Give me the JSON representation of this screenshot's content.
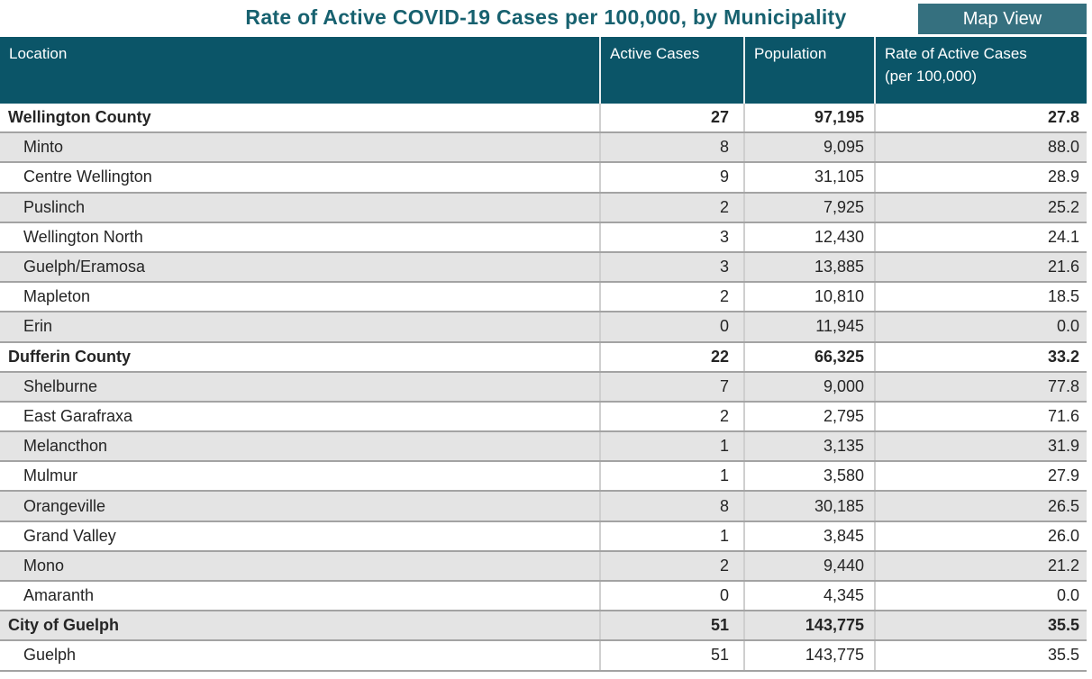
{
  "title": "Rate of Active COVID-19 Cases per 100,000, by Municipality",
  "toolbar": {
    "map_view_label": "Map View"
  },
  "table": {
    "columns": {
      "location": "Location",
      "active_cases": "Active Cases",
      "population": "Population",
      "rate": "Rate of Active Cases\n(per 100,000)"
    },
    "rows": [
      {
        "location": "Wellington County",
        "active_cases": "27",
        "population": "97,195",
        "rate": "27.8",
        "group": true
      },
      {
        "location": "Minto",
        "active_cases": "8",
        "population": "9,095",
        "rate": "88.0",
        "group": false
      },
      {
        "location": "Centre Wellington",
        "active_cases": "9",
        "population": "31,105",
        "rate": "28.9",
        "group": false
      },
      {
        "location": "Puslinch",
        "active_cases": "2",
        "population": "7,925",
        "rate": "25.2",
        "group": false
      },
      {
        "location": "Wellington North",
        "active_cases": "3",
        "population": "12,430",
        "rate": "24.1",
        "group": false
      },
      {
        "location": "Guelph/Eramosa",
        "active_cases": "3",
        "population": "13,885",
        "rate": "21.6",
        "group": false
      },
      {
        "location": "Mapleton",
        "active_cases": "2",
        "population": "10,810",
        "rate": "18.5",
        "group": false
      },
      {
        "location": "Erin",
        "active_cases": "0",
        "population": "11,945",
        "rate": "0.0",
        "group": false
      },
      {
        "location": "Dufferin County",
        "active_cases": "22",
        "population": "66,325",
        "rate": "33.2",
        "group": true
      },
      {
        "location": "Shelburne",
        "active_cases": "7",
        "population": "9,000",
        "rate": "77.8",
        "group": false
      },
      {
        "location": "East Garafraxa",
        "active_cases": "2",
        "population": "2,795",
        "rate": "71.6",
        "group": false
      },
      {
        "location": "Melancthon",
        "active_cases": "1",
        "population": "3,135",
        "rate": "31.9",
        "group": false
      },
      {
        "location": "Mulmur",
        "active_cases": "1",
        "population": "3,580",
        "rate": "27.9",
        "group": false
      },
      {
        "location": "Orangeville",
        "active_cases": "8",
        "population": "30,185",
        "rate": "26.5",
        "group": false
      },
      {
        "location": "Grand Valley",
        "active_cases": "1",
        "population": "3,845",
        "rate": "26.0",
        "group": false
      },
      {
        "location": "Mono",
        "active_cases": "2",
        "population": "9,440",
        "rate": "21.2",
        "group": false
      },
      {
        "location": "Amaranth",
        "active_cases": "0",
        "population": "4,345",
        "rate": "0.0",
        "group": false
      },
      {
        "location": "City of Guelph",
        "active_cases": "51",
        "population": "143,775",
        "rate": "35.5",
        "group": true
      },
      {
        "location": "Guelph",
        "active_cases": "51",
        "population": "143,775",
        "rate": "35.5",
        "group": false
      }
    ]
  },
  "colors": {
    "header_bg": "#0b5568",
    "title_text": "#17616f",
    "button_bg": "#35707f",
    "alt_row_bg": "#e4e4e4",
    "row_border": "#a3a3a3",
    "body_text": "#252525"
  }
}
